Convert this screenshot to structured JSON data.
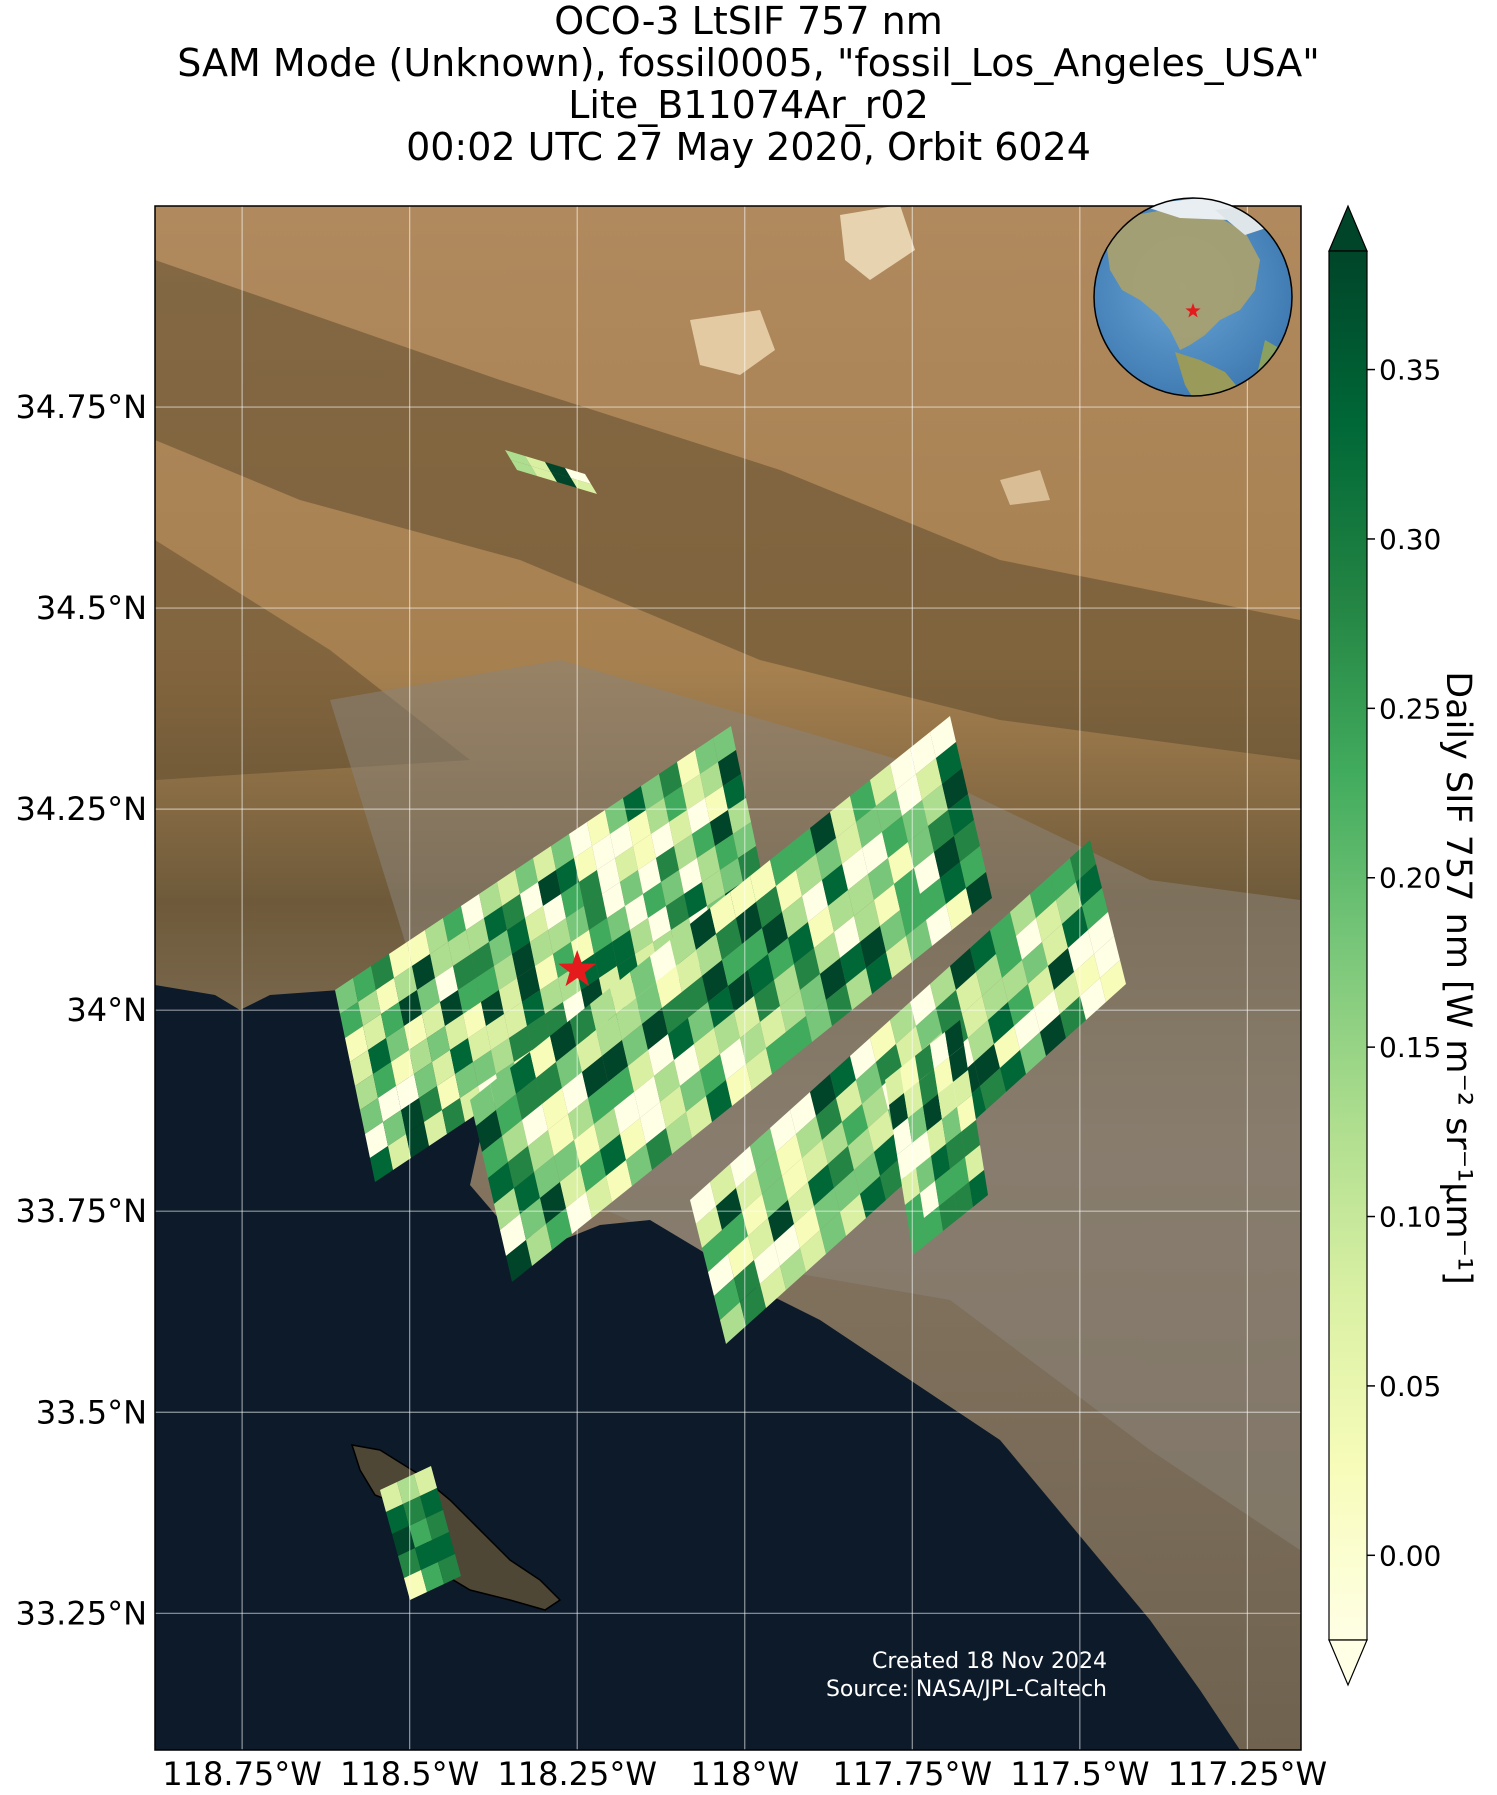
{
  "titles": [
    "OCO-3 LtSIF 757 nm",
    "SAM Mode (Unknown), fossil0005, \"fossil_Los_Angeles_USA\"",
    "Lite_B11074Ar_r02",
    "00:02 UTC 27 May 2020, Orbit 6024"
  ],
  "map": {
    "lon_range": [
      -118.88,
      -117.17
    ],
    "lat_range": [
      33.08,
      35.0
    ],
    "lon_ticks": [
      -118.75,
      -118.5,
      -118.25,
      -118.0,
      -117.75,
      -117.5,
      -117.25
    ],
    "lon_tick_labels": [
      "118.75°W",
      "118.5°W",
      "118.25°W",
      "118°W",
      "117.75°W",
      "117.5°W",
      "117.25°W"
    ],
    "lat_ticks": [
      34.75,
      34.5,
      34.25,
      34.0,
      33.75,
      33.5,
      33.25
    ],
    "lat_tick_labels": [
      "34.75°N",
      "34.5°N",
      "34.25°N",
      "34°N",
      "33.75°N",
      "33.5°N",
      "33.25°N"
    ],
    "target_marker": {
      "lon": -118.25,
      "lat": 34.05,
      "color": "#e41a1c",
      "icon": "star-icon"
    },
    "inset_globe": {
      "icon": "globe-icon",
      "marker": "star-icon"
    }
  },
  "colorbar": {
    "label": "Daily SIF 757 nm [W m⁻² sr⁻¹μm⁻¹]",
    "range": [
      -0.025,
      0.385
    ],
    "ticks": [
      0.0,
      0.05,
      0.1,
      0.15,
      0.2,
      0.25,
      0.3,
      0.35
    ],
    "tick_labels": [
      "0.00",
      "0.05",
      "0.10",
      "0.15",
      "0.20",
      "0.25",
      "0.30",
      "0.35"
    ],
    "colormap": "YlGn",
    "extend": "both"
  },
  "credits": {
    "created": "Created 18 Nov 2024",
    "source": "Source: NASA/JPL-Caltech"
  }
}
